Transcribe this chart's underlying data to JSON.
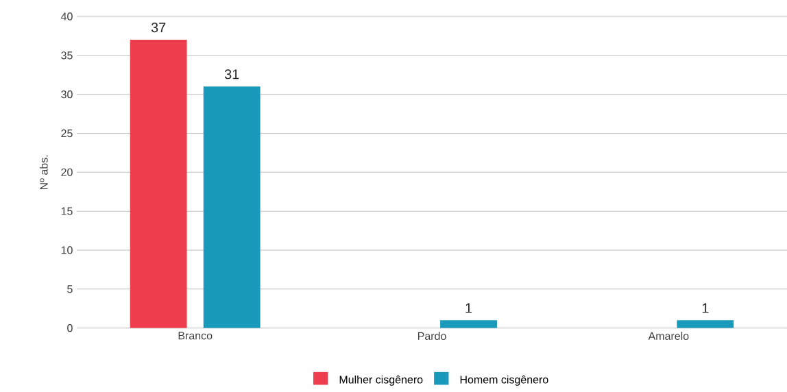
{
  "chart_data": {
    "type": "bar",
    "ylabel": "Nº abs.",
    "categories": [
      "Branco",
      "Pardo",
      "Amarelo"
    ],
    "series": [
      {
        "name": "Mulher cisgênero",
        "color": "#ee3e4e",
        "values": [
          37,
          null,
          null
        ]
      },
      {
        "name": "Homem cisgênero",
        "color": "#1a9aba",
        "values": [
          31,
          1,
          1
        ]
      }
    ],
    "ylim": [
      0,
      40
    ],
    "yticks": [
      0,
      5,
      10,
      15,
      20,
      25,
      30,
      35,
      40
    ],
    "grid": "y",
    "legend": "bottom",
    "data_labels": true
  }
}
